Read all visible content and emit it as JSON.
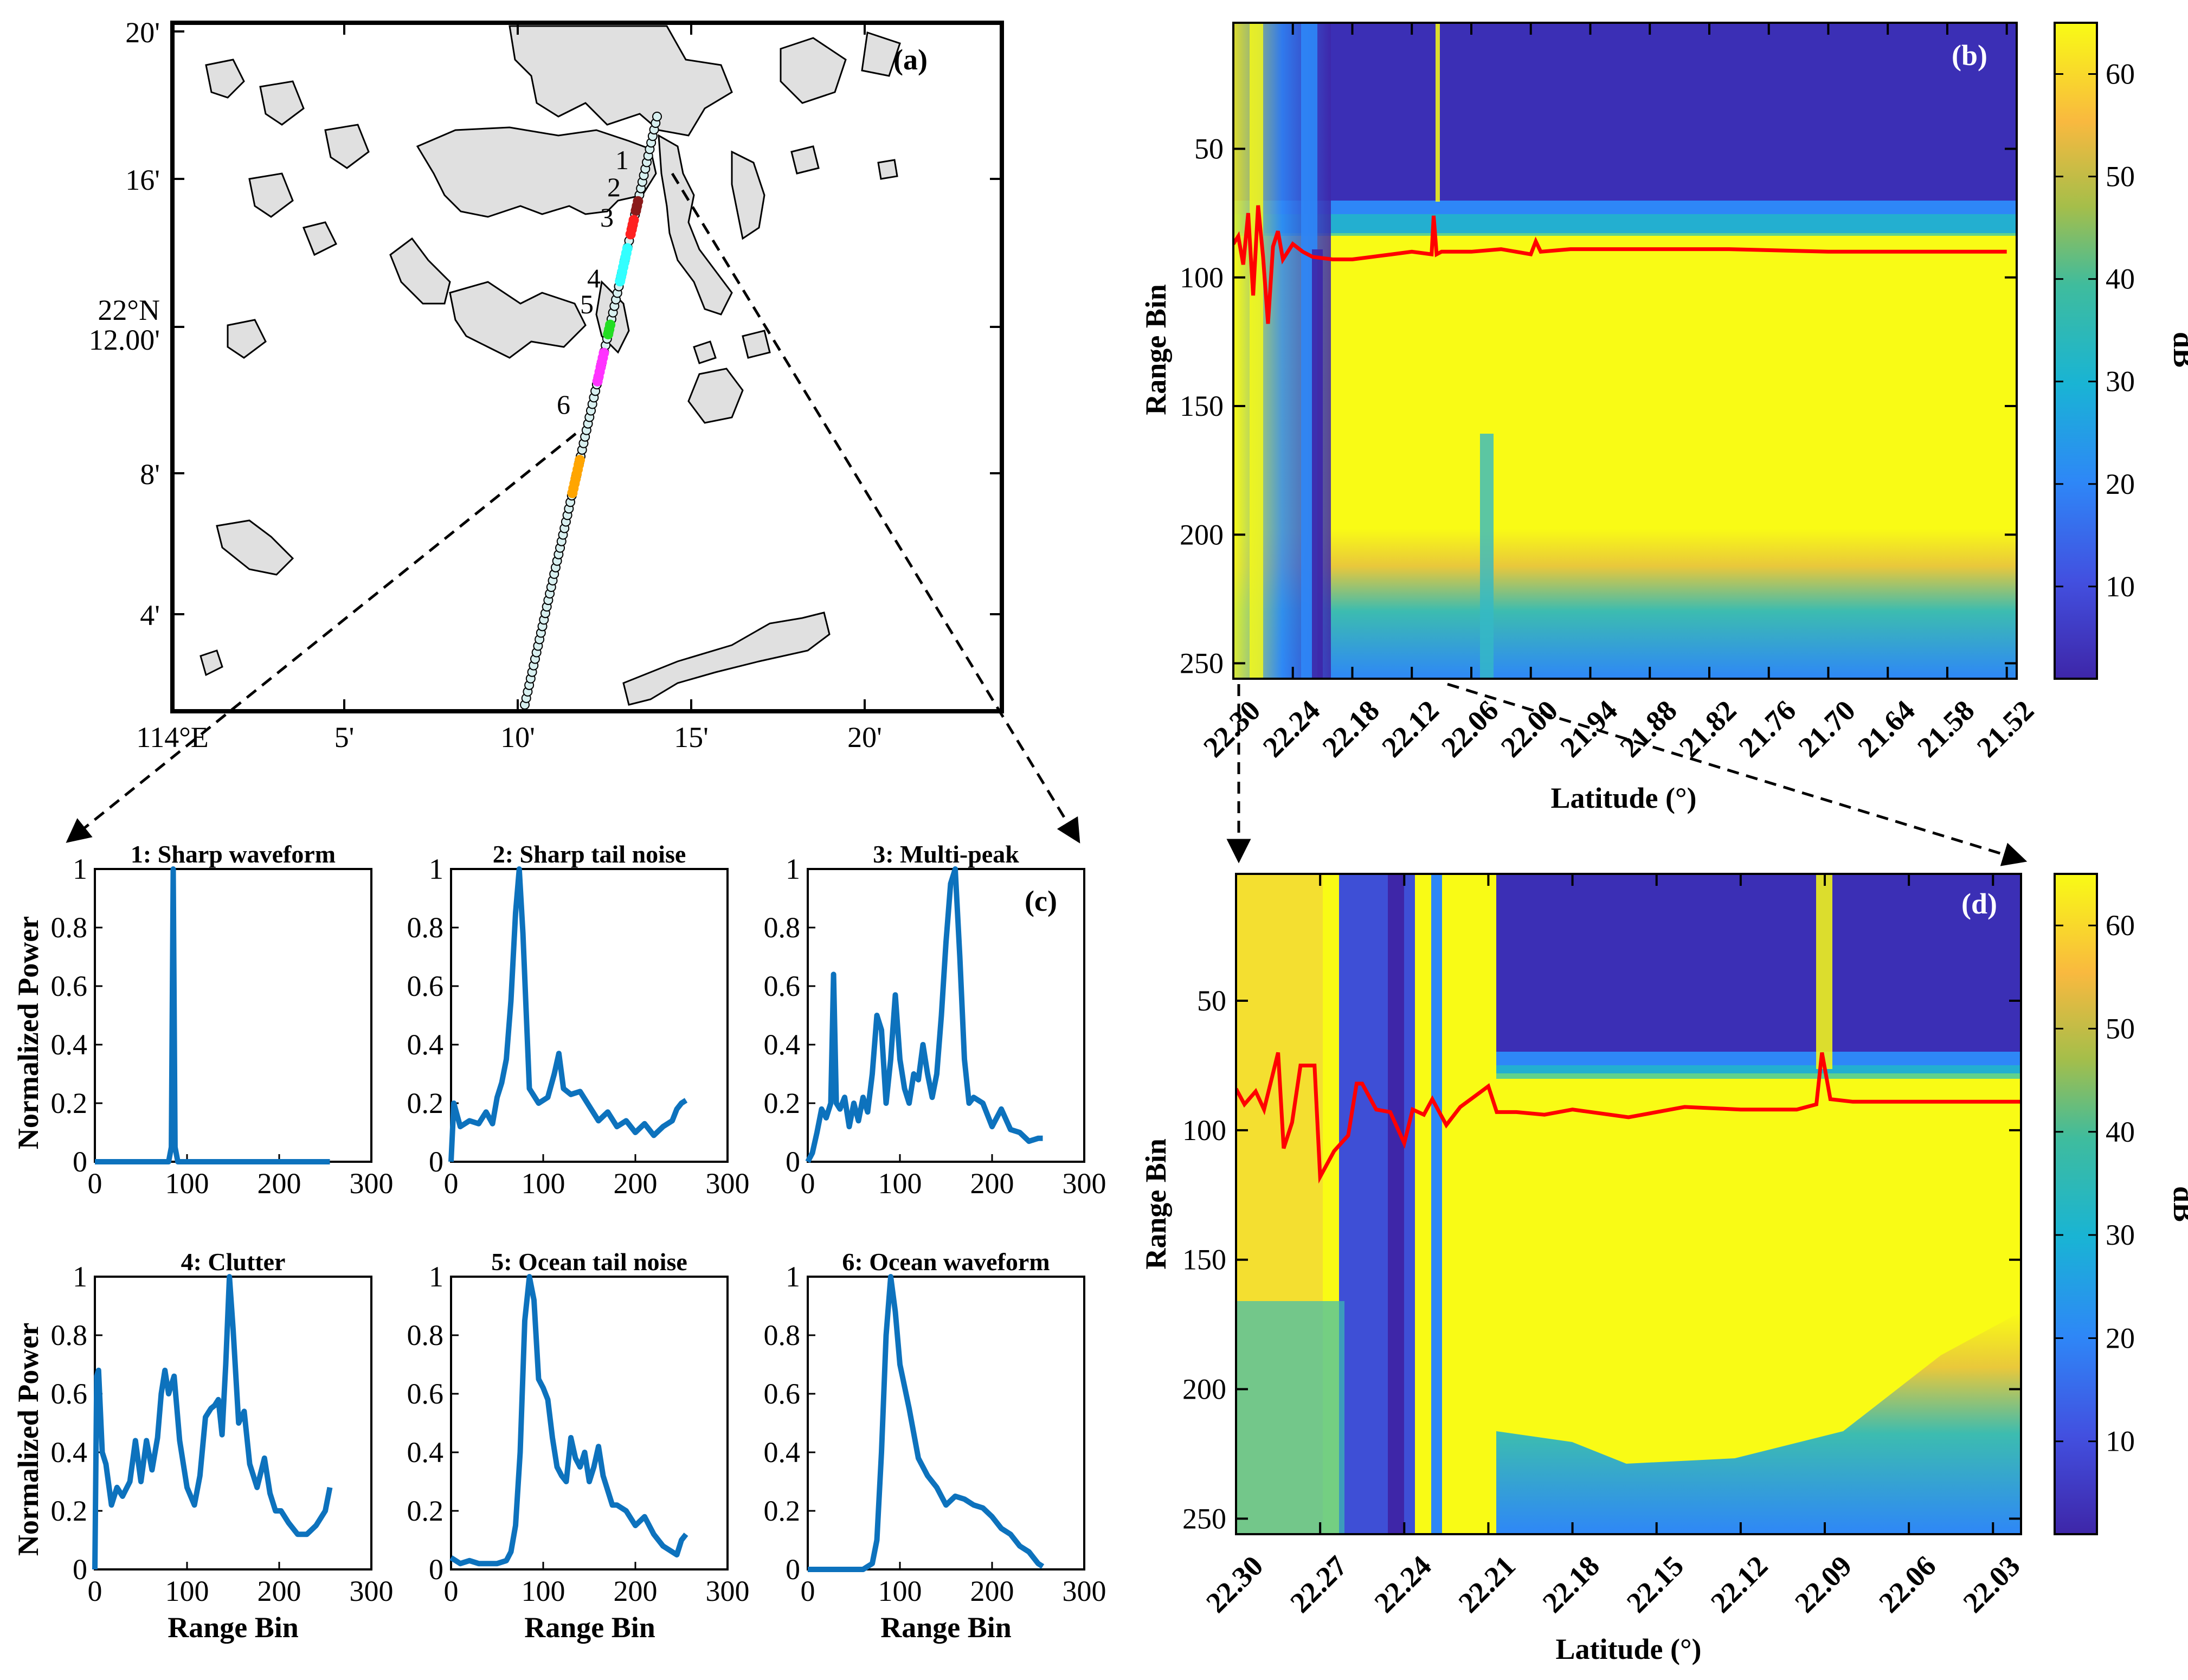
{
  "panel_labels": {
    "a": "(a)",
    "b": "(b)",
    "c": "(c)",
    "d": "(d)"
  },
  "map": {
    "x_ticks": [
      "114°E",
      "5'",
      "10'",
      "15'",
      "20'"
    ],
    "y_ticks": [
      "20'",
      "16'",
      "12.00'",
      "8'",
      "4'"
    ],
    "y_prefix": "22°N",
    "track_labels": [
      "1",
      "2",
      "3",
      "4",
      "5",
      "6"
    ],
    "segment_colors": [
      "#8b1a1a",
      "#ff2020",
      "#33ffff",
      "#22dd22",
      "#ff33ff",
      "#ffa500"
    ],
    "land_color": "#e0e0e0"
  },
  "colors": {
    "waveform": "#0d72bd",
    "retrack_line": "#ff0000",
    "colorbar": [
      "#3e26a8",
      "#2e87f7",
      "#19c1c1",
      "#83cb56",
      "#f9b93f",
      "#f9fb15"
    ]
  },
  "chart_data": [
    {
      "id": "b",
      "type": "heatmap",
      "xlabel": "Latitude (°)",
      "ylabel": "Range Bin",
      "colorbar_label": "dB",
      "x_ticks": [
        "22.30",
        "22.24",
        "22.18",
        "22.12",
        "22.06",
        "22.00",
        "21.94",
        "21.88",
        "21.82",
        "21.76",
        "21.70",
        "21.64",
        "21.58",
        "21.52"
      ],
      "xlim": [
        22.3,
        21.51
      ],
      "ylim": [
        256,
        1
      ],
      "y_ticks": [
        50,
        100,
        150,
        200,
        250
      ],
      "colorbar_ticks": [
        10,
        20,
        30,
        40,
        50,
        60
      ],
      "clim": [
        1,
        65
      ],
      "retracked_gate": {
        "lat": [
          22.3,
          22.295,
          22.29,
          22.285,
          22.28,
          22.275,
          22.27,
          22.265,
          22.26,
          22.255,
          22.25,
          22.24,
          22.23,
          22.22,
          22.2,
          22.18,
          22.16,
          22.14,
          22.12,
          22.1,
          22.098,
          22.095,
          22.09,
          22.06,
          22.03,
          22.0,
          21.995,
          21.99,
          21.96,
          21.9,
          21.8,
          21.7,
          21.6,
          21.52
        ],
        "bin": [
          87,
          84,
          95,
          75,
          107,
          72,
          92,
          118,
          88,
          82,
          93,
          87,
          90,
          92,
          93,
          93,
          92,
          91,
          90,
          91,
          76,
          91,
          90,
          90,
          89,
          91,
          86,
          90,
          89,
          89,
          89,
          90,
          90,
          90
        ]
      }
    },
    {
      "id": "c",
      "type": "line",
      "ylabel": "Normalized Power",
      "xlabel": "Range Bin",
      "xlim": [
        0,
        300
      ],
      "ylim": [
        0,
        1
      ],
      "x_ticks": [
        0,
        100,
        200,
        300
      ],
      "y_ticks": [
        0,
        0.2,
        0.4,
        0.6,
        0.8,
        1
      ],
      "y_tick_labels": [
        "0",
        "0.2",
        "0.4",
        "0.6",
        "0.8",
        "1"
      ],
      "subplots": [
        {
          "title": "1: Sharp waveform",
          "x": [
            0,
            80,
            83,
            85,
            87,
            90,
            100,
            150,
            200,
            255
          ],
          "y": [
            0,
            0,
            0.05,
            1,
            0.05,
            0,
            0,
            0,
            0,
            0
          ]
        },
        {
          "title": "2: Sharp tail noise",
          "x": [
            0,
            3,
            10,
            20,
            30,
            38,
            45,
            50,
            55,
            60,
            65,
            70,
            74,
            78,
            85,
            95,
            105,
            112,
            117,
            122,
            130,
            140,
            150,
            160,
            170,
            180,
            190,
            200,
            210,
            220,
            230,
            240,
            245,
            250,
            255
          ],
          "y": [
            0,
            0.2,
            0.12,
            0.14,
            0.13,
            0.17,
            0.13,
            0.22,
            0.27,
            0.35,
            0.55,
            0.85,
            1.0,
            0.78,
            0.25,
            0.2,
            0.22,
            0.3,
            0.37,
            0.25,
            0.23,
            0.24,
            0.19,
            0.14,
            0.17,
            0.12,
            0.14,
            0.1,
            0.13,
            0.09,
            0.12,
            0.14,
            0.18,
            0.2,
            0.21
          ]
        },
        {
          "title": "3: Multi-peak",
          "x": [
            0,
            5,
            10,
            15,
            20,
            25,
            28,
            31,
            35,
            40,
            45,
            50,
            55,
            60,
            65,
            70,
            75,
            80,
            85,
            90,
            95,
            100,
            105,
            110,
            115,
            120,
            125,
            130,
            135,
            140,
            145,
            150,
            155,
            160,
            165,
            170,
            175,
            180,
            190,
            200,
            210,
            220,
            230,
            240,
            250,
            255
          ],
          "y": [
            0,
            0.03,
            0.1,
            0.18,
            0.15,
            0.2,
            0.64,
            0.2,
            0.18,
            0.22,
            0.12,
            0.2,
            0.14,
            0.22,
            0.17,
            0.3,
            0.5,
            0.45,
            0.2,
            0.35,
            0.57,
            0.35,
            0.25,
            0.2,
            0.3,
            0.28,
            0.4,
            0.3,
            0.22,
            0.3,
            0.5,
            0.75,
            0.95,
            1.0,
            0.7,
            0.35,
            0.2,
            0.22,
            0.2,
            0.12,
            0.18,
            0.11,
            0.1,
            0.07,
            0.08,
            0.08
          ]
        },
        {
          "title": "4: Clutter",
          "x": [
            0,
            2,
            4,
            8,
            12,
            18,
            24,
            30,
            38,
            44,
            50,
            56,
            62,
            68,
            72,
            76,
            80,
            86,
            92,
            100,
            108,
            114,
            120,
            126,
            130,
            134,
            138,
            142,
            146,
            150,
            156,
            162,
            168,
            176,
            184,
            190,
            196,
            202,
            210,
            220,
            230,
            240,
            250,
            255
          ],
          "y": [
            0,
            0.66,
            0.68,
            0.4,
            0.36,
            0.22,
            0.28,
            0.25,
            0.3,
            0.44,
            0.3,
            0.44,
            0.34,
            0.45,
            0.6,
            0.68,
            0.6,
            0.66,
            0.44,
            0.28,
            0.22,
            0.32,
            0.52,
            0.55,
            0.56,
            0.58,
            0.46,
            0.7,
            1.0,
            0.82,
            0.5,
            0.54,
            0.36,
            0.28,
            0.38,
            0.26,
            0.2,
            0.2,
            0.16,
            0.12,
            0.12,
            0.15,
            0.2,
            0.28
          ]
        },
        {
          "title": "5: Ocean tail noise",
          "x": [
            0,
            10,
            20,
            30,
            40,
            50,
            60,
            65,
            70,
            75,
            80,
            85,
            90,
            95,
            100,
            105,
            110,
            115,
            120,
            125,
            130,
            135,
            140,
            145,
            150,
            155,
            160,
            165,
            170,
            175,
            180,
            190,
            200,
            210,
            220,
            230,
            240,
            245,
            250,
            255
          ],
          "y": [
            0.04,
            0.02,
            0.03,
            0.02,
            0.02,
            0.02,
            0.03,
            0.06,
            0.15,
            0.4,
            0.85,
            1.0,
            0.92,
            0.65,
            0.62,
            0.58,
            0.45,
            0.35,
            0.32,
            0.3,
            0.45,
            0.38,
            0.35,
            0.4,
            0.3,
            0.35,
            0.42,
            0.32,
            0.27,
            0.22,
            0.22,
            0.2,
            0.15,
            0.18,
            0.12,
            0.08,
            0.06,
            0.05,
            0.1,
            0.12
          ]
        },
        {
          "title": "6:  Ocean waveform",
          "x": [
            0,
            20,
            40,
            60,
            70,
            75,
            80,
            85,
            90,
            95,
            100,
            110,
            120,
            130,
            140,
            150,
            160,
            170,
            180,
            190,
            200,
            210,
            220,
            230,
            240,
            250,
            255
          ],
          "y": [
            0,
            0,
            0,
            0,
            0.02,
            0.1,
            0.4,
            0.8,
            1.0,
            0.88,
            0.7,
            0.55,
            0.38,
            0.32,
            0.28,
            0.22,
            0.25,
            0.24,
            0.22,
            0.21,
            0.18,
            0.14,
            0.12,
            0.08,
            0.06,
            0.02,
            0.01
          ]
        }
      ]
    },
    {
      "id": "d",
      "type": "heatmap",
      "xlabel": "Latitude (°)",
      "ylabel": "Range Bin",
      "colorbar_label": "dB",
      "x_ticks": [
        "22.30",
        "22.27",
        "22.24",
        "22.21",
        "22.18",
        "22.15",
        "22.12",
        "22.09",
        "22.06",
        "22.03"
      ],
      "xlim": [
        22.3,
        22.02
      ],
      "ylim": [
        256,
        1
      ],
      "y_ticks": [
        50,
        100,
        150,
        200,
        250
      ],
      "colorbar_ticks": [
        10,
        20,
        30,
        40,
        50,
        60
      ],
      "clim": [
        1,
        65
      ],
      "retracked_gate": {
        "lat": [
          22.3,
          22.297,
          22.293,
          22.29,
          22.285,
          22.283,
          22.28,
          22.277,
          22.272,
          22.27,
          22.265,
          22.26,
          22.257,
          22.255,
          22.25,
          22.245,
          22.24,
          22.237,
          22.233,
          22.23,
          22.225,
          22.22,
          22.215,
          22.21,
          22.207,
          22.2,
          22.19,
          22.18,
          22.16,
          22.15,
          22.14,
          22.12,
          22.1,
          22.093,
          22.091,
          22.088,
          22.08,
          22.06,
          22.04,
          22.02
        ],
        "bin": [
          84,
          90,
          85,
          92,
          70,
          107,
          97,
          75,
          75,
          118,
          108,
          102,
          82,
          82,
          92,
          93,
          105,
          92,
          94,
          88,
          98,
          91,
          87,
          83,
          93,
          93,
          94,
          92,
          95,
          93,
          91,
          92,
          92,
          90,
          70,
          88,
          89,
          89,
          89,
          89
        ]
      }
    }
  ]
}
